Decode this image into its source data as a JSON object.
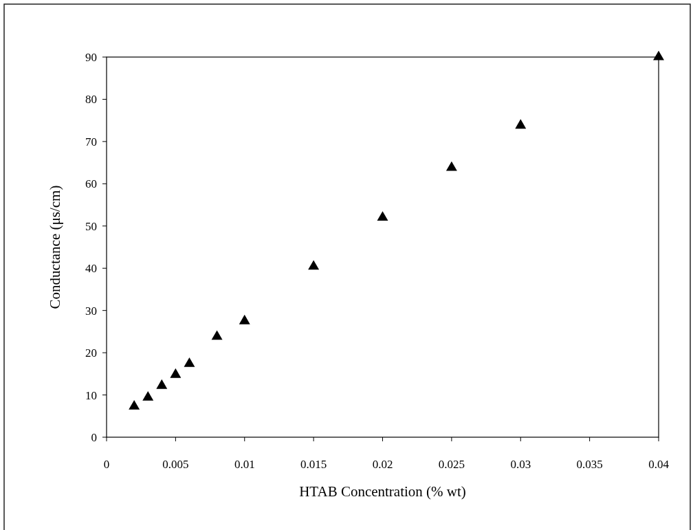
{
  "chart_data": {
    "type": "scatter",
    "xlabel": "HTAB Concentration (% wt)",
    "ylabel": "Conductance (μs/cm)",
    "x": [
      0.002,
      0.003,
      0.004,
      0.005,
      0.006,
      0.008,
      0.01,
      0.015,
      0.02,
      0.025,
      0.03,
      0.04
    ],
    "series": [
      {
        "color": "#000000",
        "values": [
          7.3,
          9.4,
          12.2,
          14.8,
          17.4,
          23.8,
          27.5,
          40.4,
          52,
          63.8,
          73.8,
          90
        ]
      }
    ],
    "xlim": [
      0,
      0.04
    ],
    "xticks": [
      0,
      0.005,
      0.01,
      0.015,
      0.02,
      0.025,
      0.03,
      0.035,
      0.04
    ],
    "ylim": [
      0,
      90
    ],
    "yticks": [
      0,
      10,
      20,
      30,
      40,
      50,
      60,
      70,
      80,
      90
    ],
    "marker": "triangle",
    "grid": false
  }
}
